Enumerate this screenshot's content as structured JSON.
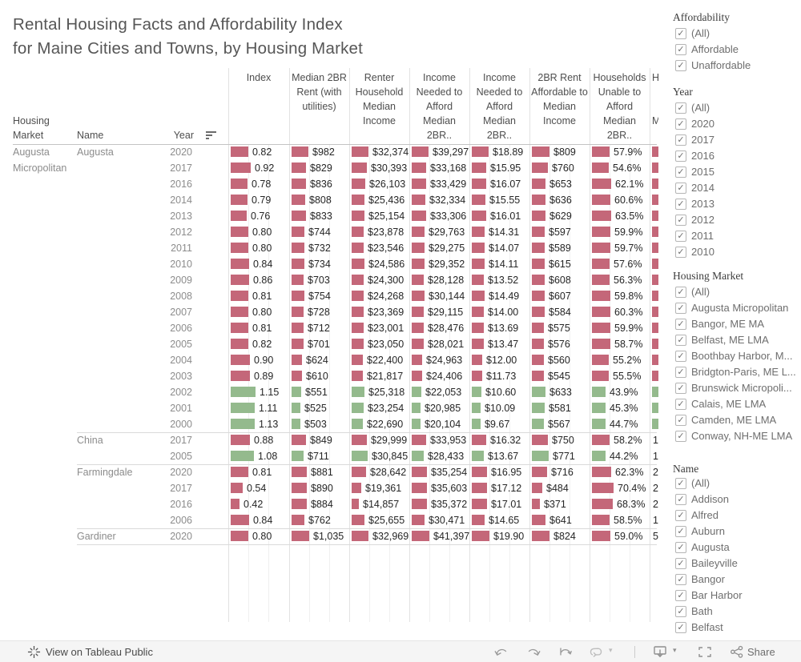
{
  "title": {
    "line1": "Rental Housing Facts and Affordability Index",
    "line2": "for Maine Cities and Towns, by Housing Market"
  },
  "colors": {
    "bar_red": "#c46779",
    "bar_green": "#94ba8d"
  },
  "table": {
    "row_headers": {
      "housing_market_line1": "Housing",
      "housing_market_line2": "Market",
      "name": "Name",
      "year": "Year"
    },
    "columns": [
      {
        "lines": [
          "Index"
        ]
      },
      {
        "lines": [
          "Median 2BR",
          "Rent (with",
          "utilities)"
        ]
      },
      {
        "lines": [
          "Renter",
          "Household",
          "Median",
          "Income"
        ]
      },
      {
        "lines": [
          "Income",
          "Needed to",
          "Afford",
          "Median 2BR.."
        ]
      },
      {
        "lines": [
          "Income",
          "Needed to",
          "Afford",
          "Median 2BR.."
        ]
      },
      {
        "lines": [
          "2BR Rent",
          "Affordable to",
          "Median",
          "Income"
        ]
      },
      {
        "lines": [
          "Households",
          "Unable to",
          "Afford",
          "Median 2BR.."
        ]
      }
    ],
    "partial_column": {
      "lines": [
        "H",
        "",
        "",
        "M"
      ]
    },
    "groups": [
      {
        "market_lines": [
          "Augusta",
          "Micropolitan"
        ],
        "name": "Augusta",
        "rows": [
          {
            "year": "2020",
            "color": "red",
            "values": [
              "0.82",
              "$982",
              "$32,374",
              "$39,297",
              "$18.89",
              "$809",
              "57.9%"
            ],
            "partial": "bar"
          },
          {
            "year": "2017",
            "color": "red",
            "values": [
              "0.92",
              "$829",
              "$30,393",
              "$33,168",
              "$15.95",
              "$760",
              "54.6%"
            ],
            "partial": "bar"
          },
          {
            "year": "2016",
            "color": "red",
            "values": [
              "0.78",
              "$836",
              "$26,103",
              "$33,429",
              "$16.07",
              "$653",
              "62.1%"
            ],
            "partial": "bar"
          },
          {
            "year": "2014",
            "color": "red",
            "values": [
              "0.79",
              "$808",
              "$25,436",
              "$32,334",
              "$15.55",
              "$636",
              "60.6%"
            ],
            "partial": "bar"
          },
          {
            "year": "2013",
            "color": "red",
            "values": [
              "0.76",
              "$833",
              "$25,154",
              "$33,306",
              "$16.01",
              "$629",
              "63.5%"
            ],
            "partial": "bar"
          },
          {
            "year": "2012",
            "color": "red",
            "values": [
              "0.80",
              "$744",
              "$23,878",
              "$29,763",
              "$14.31",
              "$597",
              "59.9%"
            ],
            "partial": "bar"
          },
          {
            "year": "2011",
            "color": "red",
            "values": [
              "0.80",
              "$732",
              "$23,546",
              "$29,275",
              "$14.07",
              "$589",
              "59.7%"
            ],
            "partial": "bar"
          },
          {
            "year": "2010",
            "color": "red",
            "values": [
              "0.84",
              "$734",
              "$24,586",
              "$29,352",
              "$14.11",
              "$615",
              "57.6%"
            ],
            "partial": "bar"
          },
          {
            "year": "2009",
            "color": "red",
            "values": [
              "0.86",
              "$703",
              "$24,300",
              "$28,128",
              "$13.52",
              "$608",
              "56.3%"
            ],
            "partial": "bar"
          },
          {
            "year": "2008",
            "color": "red",
            "values": [
              "0.81",
              "$754",
              "$24,268",
              "$30,144",
              "$14.49",
              "$607",
              "59.8%"
            ],
            "partial": "bar"
          },
          {
            "year": "2007",
            "color": "red",
            "values": [
              "0.80",
              "$728",
              "$23,369",
              "$29,115",
              "$14.00",
              "$584",
              "60.3%"
            ],
            "partial": "bar"
          },
          {
            "year": "2006",
            "color": "red",
            "values": [
              "0.81",
              "$712",
              "$23,001",
              "$28,476",
              "$13.69",
              "$575",
              "59.9%"
            ],
            "partial": "bar"
          },
          {
            "year": "2005",
            "color": "red",
            "values": [
              "0.82",
              "$701",
              "$23,050",
              "$28,021",
              "$13.47",
              "$576",
              "58.7%"
            ],
            "partial": "bar"
          },
          {
            "year": "2004",
            "color": "red",
            "values": [
              "0.90",
              "$624",
              "$22,400",
              "$24,963",
              "$12.00",
              "$560",
              "55.2%"
            ],
            "partial": "bar"
          },
          {
            "year": "2003",
            "color": "red",
            "values": [
              "0.89",
              "$610",
              "$21,817",
              "$24,406",
              "$11.73",
              "$545",
              "55.5%"
            ],
            "partial": "bar"
          },
          {
            "year": "2002",
            "color": "green",
            "values": [
              "1.15",
              "$551",
              "$25,318",
              "$22,053",
              "$10.60",
              "$633",
              "43.9%"
            ],
            "partial": "bar"
          },
          {
            "year": "2001",
            "color": "green",
            "values": [
              "1.11",
              "$525",
              "$23,254",
              "$20,985",
              "$10.09",
              "$581",
              "45.3%"
            ],
            "partial": "bar"
          },
          {
            "year": "2000",
            "color": "green",
            "values": [
              "1.13",
              "$503",
              "$22,690",
              "$20,104",
              "$9.67",
              "$567",
              "44.7%"
            ],
            "partial": "bar"
          }
        ]
      },
      {
        "name": "China",
        "rows": [
          {
            "year": "2017",
            "color": "red",
            "values": [
              "0.88",
              "$849",
              "$29,999",
              "$33,953",
              "$16.32",
              "$750",
              "58.2%"
            ],
            "partial": "1"
          },
          {
            "year": "2005",
            "color": "green",
            "values": [
              "1.08",
              "$711",
              "$30,845",
              "$28,433",
              "$13.67",
              "$771",
              "44.2%"
            ],
            "partial": "1"
          }
        ]
      },
      {
        "name": "Farmingdale",
        "rows": [
          {
            "year": "2020",
            "color": "red",
            "values": [
              "0.81",
              "$881",
              "$28,642",
              "$35,254",
              "$16.95",
              "$716",
              "62.3%"
            ],
            "partial": "2"
          },
          {
            "year": "2017",
            "color": "red",
            "values": [
              "0.54",
              "$890",
              "$19,361",
              "$35,603",
              "$17.12",
              "$484",
              "70.4%"
            ],
            "partial": "2"
          },
          {
            "year": "2016",
            "color": "red",
            "values": [
              "0.42",
              "$884",
              "$14,857",
              "$35,372",
              "$17.01",
              "$371",
              "68.3%"
            ],
            "partial": "2"
          },
          {
            "year": "2006",
            "color": "red",
            "values": [
              "0.84",
              "$762",
              "$25,655",
              "$30,471",
              "$14.65",
              "$641",
              "58.5%"
            ],
            "partial": "1"
          }
        ]
      },
      {
        "name": "Gardiner",
        "rows": [
          {
            "year": "2020",
            "color": "red",
            "values": [
              "0.80",
              "$1,035",
              "$32,969",
              "$41,397",
              "$19.90",
              "$824",
              "59.0%"
            ],
            "partial": "5"
          }
        ]
      }
    ]
  },
  "filters": [
    {
      "title": "Affordability",
      "items": [
        "(All)",
        "Affordable",
        "Unaffordable"
      ],
      "checked": true
    },
    {
      "title": "Year",
      "items": [
        "(All)",
        "2020",
        "2017",
        "2016",
        "2015",
        "2014",
        "2013",
        "2012",
        "2011",
        "2010"
      ],
      "checked": true
    },
    {
      "title": "Housing  Market",
      "items": [
        "(All)",
        "Augusta Micropolitan",
        "Bangor, ME MA",
        "Belfast, ME LMA",
        "Boothbay Harbor, M...",
        "Bridgton-Paris, ME L...",
        "Brunswick Micropoli...",
        "Calais, ME LMA",
        "Camden, ME LMA",
        "Conway, NH-ME LMA"
      ],
      "checked": true
    },
    {
      "title": "Name",
      "items": [
        "(All)",
        "Addison",
        "Alfred",
        "Auburn",
        "Augusta",
        "Baileyville",
        "Bangor",
        "Bar Harbor",
        "Bath",
        "Belfast"
      ],
      "checked": true
    }
  ],
  "toolbar": {
    "left_label": "View on Tableau Public",
    "share_label": "Share"
  }
}
